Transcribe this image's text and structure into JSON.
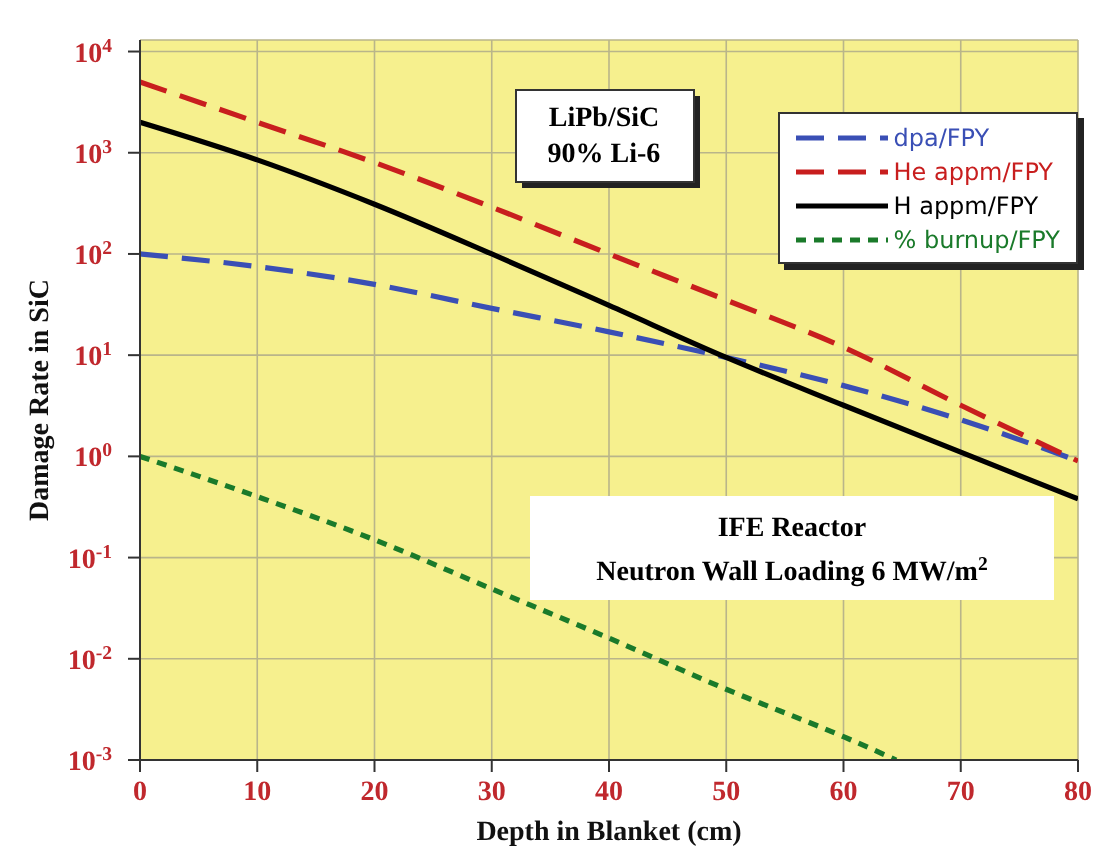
{
  "chart_data": {
    "type": "line",
    "xlabel": "Depth in Blanket (cm)",
    "ylabel": "Damage Rate in SiC",
    "x": [
      0,
      10,
      20,
      30,
      40,
      50,
      60,
      70,
      80
    ],
    "series": [
      {
        "name": "dpa/FPY",
        "color": "#3a4fb5",
        "line_style": "dashed",
        "values": [
          100,
          75,
          50,
          29,
          17,
          9.5,
          5,
          2.3,
          0.9
        ]
      },
      {
        "name": "He appm/FPY",
        "color": "#c81e1e",
        "line_style": "dashed",
        "values": [
          5000,
          2000,
          800,
          290,
          100,
          35,
          12,
          3.2,
          0.9
        ]
      },
      {
        "name": "H appm/FPY",
        "color": "#000000",
        "line_style": "solid",
        "values": [
          2000,
          850,
          310,
          100,
          31,
          9.5,
          3.2,
          1.1,
          0.38
        ]
      },
      {
        "name": "% burnup/FPY",
        "color": "#1a7a2a",
        "line_style": "dotted",
        "x": [
          0,
          10,
          20,
          30,
          40,
          50,
          60,
          64.5
        ],
        "values": [
          1,
          0.4,
          0.15,
          0.049,
          0.016,
          0.005,
          0.0017,
          0.001
        ]
      }
    ],
    "log": "y",
    "xlim": [
      0,
      80
    ],
    "xticks": [
      0,
      10,
      20,
      30,
      40,
      50,
      60,
      70,
      80
    ],
    "ylim": [
      0.001,
      13000
    ],
    "yticks": [
      {
        "value": 0.001,
        "label": "10$^{-3}$"
      },
      {
        "value": 0.01,
        "label": "10$^{-2}$"
      },
      {
        "value": 0.1,
        "label": "10$^{-1}$"
      },
      {
        "value": 1,
        "label": "10$^{0}$"
      },
      {
        "value": 10,
        "label": "10$^{1}$"
      },
      {
        "value": 100,
        "label": "10$^{2}$"
      },
      {
        "value": 1000,
        "label": "10$^{3}$"
      },
      {
        "value": 10000,
        "label": "10$^{4}$"
      }
    ],
    "grid": true,
    "legend": "top right",
    "marker": "none",
    "annotations": [
      "LiPb/SiC",
      "90% Li-6",
      "IFE Reactor",
      "Neutron Wall Loading 6 MW/m$^{2}$"
    ]
  }
}
